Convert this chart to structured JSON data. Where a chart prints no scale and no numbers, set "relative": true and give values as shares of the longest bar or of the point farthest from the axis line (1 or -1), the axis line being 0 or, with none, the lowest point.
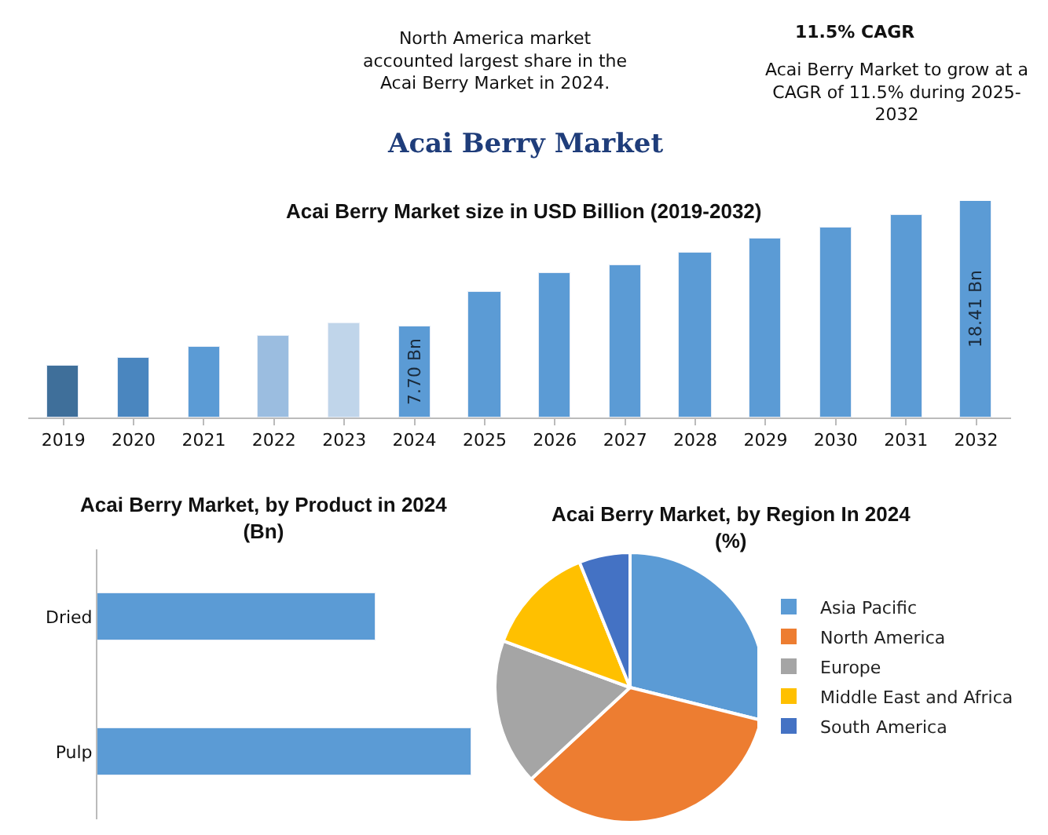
{
  "chart_data": [
    {
      "type": "other",
      "title": "Acai Berry Market",
      "annotations": [
        "North America market\naccounted largest share in the\nAcai Berry Market in 2024.",
        "11.5% CAGR",
        "Acai Berry Market to grow at a\nCAGR of 11.5% during 2025-\n2032"
      ]
    },
    {
      "type": "bar",
      "title": "Acai Berry Market size in USD Billion (2019-2032)",
      "categories": [
        "2019",
        "2020",
        "2021",
        "2022",
        "2023",
        "2024",
        "2025",
        "2026",
        "2027",
        "2028",
        "2029",
        "2030",
        "2031",
        "2032"
      ],
      "values": [
        4.45,
        5.11,
        6.02,
        6.98,
        8.0,
        7.7,
        10.65,
        12.33,
        12.94,
        14.02,
        15.16,
        16.18,
        17.27,
        18.41
      ],
      "colors": [
        "#3f6f9a",
        "#4a86bf",
        "#5b9bd5",
        "#9bbde0",
        "#c0d5ea",
        "#5b9bd5",
        "#5b9bd5",
        "#5b9bd5",
        "#5b9bd5",
        "#5b9bd5",
        "#5b9bd5",
        "#5b9bd5",
        "#5b9bd5",
        "#5b9bd5"
      ],
      "value_labels": [
        null,
        null,
        null,
        null,
        null,
        "7.70 Bn",
        null,
        null,
        null,
        null,
        null,
        null,
        null,
        "18.41 Bn"
      ],
      "tick_labels": "x",
      "legend": false
    },
    {
      "type": "bar",
      "orientation": "horizontal",
      "relative": true,
      "title": "Acai Berry Market, by Product in 2024\n(Bn)",
      "categories": [
        "Dried",
        "Pulp"
      ],
      "values": [
        0.744,
        1
      ],
      "color": "#5b9bd5",
      "legend": false
    },
    {
      "type": "pie",
      "title": "Acai Berry Market, by Region In 2024\n(%)",
      "categories": [
        "Asia Pacific",
        "North America",
        "Europe",
        "Middle East and Africa",
        "South America"
      ],
      "values": [
        28.9,
        34.2,
        17.5,
        13.3,
        6.1
      ],
      "colors": [
        "#5b9bd5",
        "#ed7d31",
        "#a5a5a5",
        "#ffc000",
        "#4472c4"
      ],
      "legend": "right"
    }
  ]
}
